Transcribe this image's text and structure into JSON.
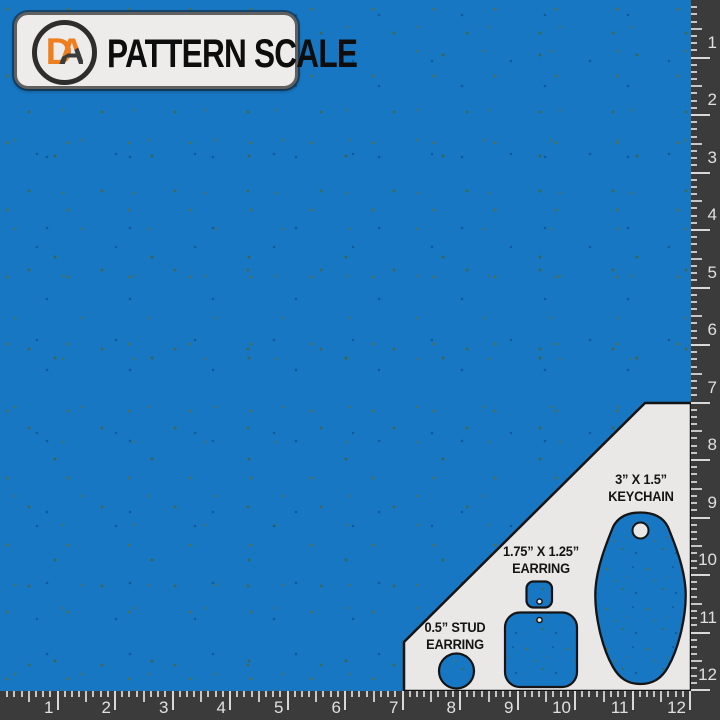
{
  "badge": {
    "title": "PATTERN SCALE",
    "logo_letter_d": "D",
    "logo_letter_a": "A"
  },
  "templates": [
    {
      "id": "keychain",
      "label_line1": "3” X 1.5”",
      "label_line2": "KEYCHAIN"
    },
    {
      "id": "earring",
      "label_line1": "1.75” X 1.25”",
      "label_line2": "EARRING"
    },
    {
      "id": "stud-earring",
      "label_line1": "0.5” STUD",
      "label_line2": "EARRING"
    }
  ],
  "rulers": {
    "unit": "inches",
    "horizontal_numbers": [
      "1",
      "2",
      "3",
      "4",
      "5",
      "6",
      "7",
      "8",
      "9",
      "10",
      "11",
      "12"
    ],
    "vertical_numbers": [
      "1",
      "2",
      "3",
      "4",
      "5",
      "6",
      "7",
      "8",
      "9",
      "10",
      "11",
      "12"
    ]
  },
  "colors": {
    "fabric_blue": "#1877c3",
    "speckle_olive": "#5c6b2e",
    "card_background": "#e9e8e6",
    "shape_outline": "#141414",
    "ruler_background": "#3b3b3b",
    "ruler_tick": "#c6c6c6",
    "ruler_number": "#e0e0e0",
    "logo_orange": "#ef7e1f",
    "logo_dark": "#2d2d2d",
    "badge_background": "#edecea"
  }
}
